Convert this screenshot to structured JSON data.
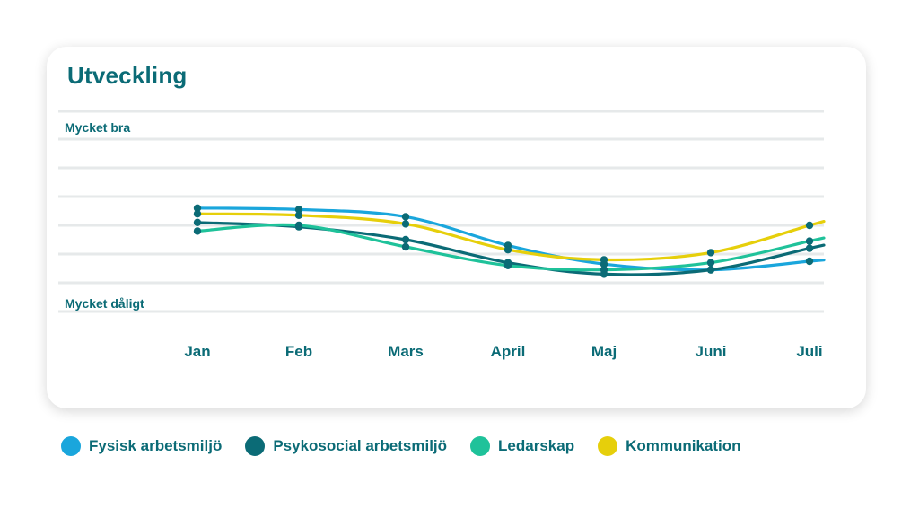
{
  "chart_data": {
    "type": "line",
    "title": "Utveckling",
    "categories": [
      "Jan",
      "Feb",
      "Mars",
      "April",
      "Maj",
      "Juni",
      "Juli"
    ],
    "y_labels": {
      "top": "Mycket bra",
      "bottom": "Mycket dåligt"
    },
    "ylim": [
      1,
      7
    ],
    "grid": true,
    "legend_position": "bottom",
    "series": [
      {
        "name": "Fysisk arbetsmiljö",
        "color": "#1aa6dc",
        "values": [
          4.6,
          4.55,
          4.3,
          3.3,
          2.65,
          2.45,
          2.75
        ]
      },
      {
        "name": "Psykosocial arbetsmiljö",
        "color": "#0b6b76",
        "values": [
          4.1,
          3.95,
          3.5,
          2.7,
          2.3,
          2.45,
          3.2
        ]
      },
      {
        "name": "Ledarskap",
        "color": "#1fc29a",
        "values": [
          3.8,
          4.0,
          3.25,
          2.6,
          2.45,
          2.7,
          3.45
        ]
      },
      {
        "name": "Kommunikation",
        "color": "#e6cf0b",
        "values": [
          4.4,
          4.35,
          4.05,
          3.15,
          2.8,
          3.05,
          4.0
        ]
      }
    ]
  }
}
